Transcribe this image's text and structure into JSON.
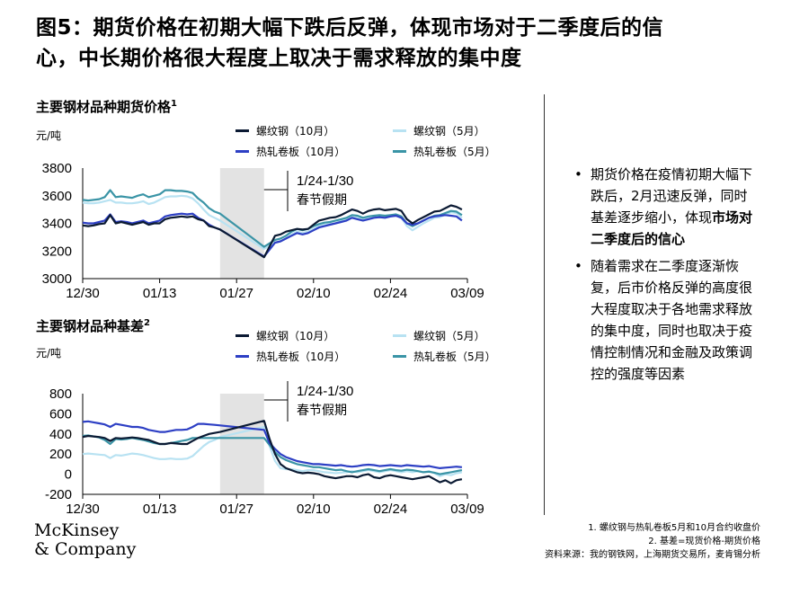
{
  "title_line1": "图5：期货价格在初期大幅下跌后反弹，体现市场对于二季度后的信",
  "title_line2": "心，中长期价格很大程度上取决于需求释放的集中度",
  "colors": {
    "rebar10": "#0b1a33",
    "rebar5": "#b8e2f2",
    "hrc10": "#2d3fc4",
    "hrc5": "#3a94a6",
    "holiday": "#e3e3e3"
  },
  "legend": {
    "rebar10": "螺纹钢（10月）",
    "rebar5": "螺纹钢（5月）",
    "hrc10": "热轧卷板（10月）",
    "hrc5": "热轧卷板（5月）"
  },
  "bullets": [
    {
      "pre": "期货价格在疫情初期大幅下跌后，2月迅速反弹，同时基差逐步缩小，体现",
      "bold": "市场对二季度后的信心",
      "post": ""
    },
    {
      "pre": "随着需求在二季度逐渐恢复，后市价格反弹的高度很大程度取决于各地需求释放的集中度，同时也取决于疫情控制情况和金融及政策调控的强度等因素",
      "bold": "",
      "post": ""
    }
  ],
  "footnotes": [
    "1. 螺纹钢与热轧卷板5月和10月合约收盘价",
    "2. 基差=现货价格-期货价格",
    "资料来源：我的钢铁网，上海期货交易所，麦肯锡分析"
  ],
  "logo": {
    "line1": "McKinsey",
    "line2": "& Company"
  },
  "chart_data": [
    {
      "type": "line",
      "title": "主要钢材品种期货价格",
      "title_sup": "1",
      "unit": "元/吨",
      "ylim": [
        3000,
        3800
      ],
      "yticks": [
        "3000",
        "3200",
        "3400",
        "3600",
        "3800"
      ],
      "xticks": [
        "12/30",
        "01/13",
        "01/27",
        "02/10",
        "02/24",
        "03/09"
      ],
      "x_days": [
        0,
        14,
        28,
        42,
        56,
        70
      ],
      "holiday": {
        "from": 25,
        "to": 33,
        "label1": "1/24-1/30",
        "label2": "春节假期"
      },
      "series": [
        {
          "key": "rebar10",
          "name": "螺纹钢（10月）",
          "x": [
            0,
            1,
            2,
            3,
            4,
            5,
            6,
            7,
            8,
            9,
            10,
            11,
            12,
            13,
            14,
            15,
            16,
            17,
            18,
            19,
            20,
            21,
            22,
            23,
            24,
            25,
            33,
            35,
            36,
            37,
            38,
            39,
            40,
            41,
            42,
            43,
            44,
            45,
            46,
            47,
            48,
            49,
            50,
            51,
            52,
            53,
            54,
            55,
            56,
            57,
            58,
            59,
            60,
            61,
            62,
            63,
            64,
            65,
            66,
            67,
            68,
            69
          ],
          "y": [
            3385,
            3380,
            3385,
            3395,
            3400,
            3460,
            3400,
            3410,
            3400,
            3390,
            3400,
            3410,
            3390,
            3400,
            3400,
            3430,
            3440,
            3445,
            3450,
            3445,
            3450,
            3430,
            3420,
            3380,
            3370,
            3355,
            3155,
            3310,
            3320,
            3340,
            3350,
            3360,
            3355,
            3360,
            3390,
            3420,
            3430,
            3440,
            3445,
            3460,
            3480,
            3500,
            3490,
            3470,
            3490,
            3500,
            3505,
            3495,
            3500,
            3505,
            3490,
            3430,
            3400,
            3425,
            3445,
            3465,
            3485,
            3490,
            3510,
            3530,
            3520,
            3500
          ]
        },
        {
          "key": "rebar5",
          "name": "螺纹钢（5月）",
          "x": [
            0,
            1,
            2,
            3,
            4,
            5,
            6,
            7,
            8,
            9,
            10,
            11,
            12,
            13,
            14,
            15,
            16,
            17,
            18,
            19,
            20,
            21,
            22,
            23,
            24,
            25,
            33,
            35,
            36,
            37,
            38,
            39,
            40,
            41,
            42,
            43,
            44,
            45,
            46,
            47,
            48,
            49,
            50,
            51,
            52,
            53,
            54,
            55,
            56,
            57,
            58,
            59,
            60,
            61,
            62,
            63,
            64,
            65,
            66,
            67,
            68,
            69
          ],
          "y": [
            3550,
            3545,
            3545,
            3550,
            3560,
            3570,
            3550,
            3550,
            3545,
            3545,
            3550,
            3560,
            3540,
            3550,
            3570,
            3590,
            3595,
            3595,
            3600,
            3595,
            3580,
            3545,
            3500,
            3460,
            3440,
            3420,
            3215,
            3260,
            3270,
            3290,
            3320,
            3340,
            3330,
            3340,
            3360,
            3380,
            3390,
            3395,
            3400,
            3420,
            3430,
            3445,
            3440,
            3430,
            3440,
            3445,
            3450,
            3445,
            3450,
            3455,
            3440,
            3380,
            3350,
            3375,
            3400,
            3420,
            3440,
            3445,
            3465,
            3480,
            3475,
            3440
          ]
        },
        {
          "key": "hrc10",
          "name": "热轧卷板（10月）",
          "x": [
            0,
            1,
            2,
            3,
            4,
            5,
            6,
            7,
            8,
            9,
            10,
            11,
            12,
            13,
            14,
            15,
            16,
            17,
            18,
            19,
            20,
            21,
            22,
            23,
            24,
            25,
            33,
            35,
            36,
            37,
            38,
            39,
            40,
            41,
            42,
            43,
            44,
            45,
            46,
            47,
            48,
            49,
            50,
            51,
            52,
            53,
            54,
            55,
            56,
            57,
            58,
            59,
            60,
            61,
            62,
            63,
            64,
            65,
            66,
            67,
            68,
            69
          ],
          "y": [
            3405,
            3400,
            3400,
            3410,
            3420,
            3465,
            3410,
            3415,
            3410,
            3400,
            3410,
            3420,
            3400,
            3410,
            3420,
            3450,
            3460,
            3465,
            3470,
            3465,
            3470,
            3440,
            3420,
            3390,
            3370,
            3355,
            3160,
            3260,
            3270,
            3290,
            3310,
            3330,
            3320,
            3330,
            3350,
            3370,
            3380,
            3390,
            3400,
            3410,
            3420,
            3440,
            3430,
            3420,
            3430,
            3440,
            3445,
            3440,
            3450,
            3455,
            3440,
            3400,
            3390,
            3400,
            3420,
            3440,
            3450,
            3455,
            3460,
            3455,
            3450,
            3420
          ]
        },
        {
          "key": "hrc5",
          "name": "热轧卷板（5月）",
          "x": [
            0,
            1,
            2,
            3,
            4,
            5,
            6,
            7,
            8,
            9,
            10,
            11,
            12,
            13,
            14,
            15,
            16,
            17,
            18,
            19,
            20,
            21,
            22,
            23,
            24,
            25,
            33,
            35,
            36,
            37,
            38,
            39,
            40,
            41,
            42,
            43,
            44,
            45,
            46,
            47,
            48,
            49,
            50,
            51,
            52,
            53,
            54,
            55,
            56,
            57,
            58,
            59,
            60,
            61,
            62,
            63,
            64,
            65,
            66,
            67,
            68,
            69
          ],
          "y": [
            3570,
            3565,
            3570,
            3575,
            3590,
            3640,
            3590,
            3595,
            3590,
            3585,
            3600,
            3610,
            3590,
            3600,
            3610,
            3640,
            3640,
            3635,
            3635,
            3630,
            3620,
            3580,
            3550,
            3510,
            3485,
            3470,
            3230,
            3280,
            3290,
            3310,
            3340,
            3360,
            3350,
            3360,
            3380,
            3395,
            3405,
            3410,
            3420,
            3430,
            3440,
            3460,
            3455,
            3440,
            3450,
            3455,
            3460,
            3455,
            3460,
            3465,
            3450,
            3400,
            3380,
            3400,
            3420,
            3440,
            3455,
            3460,
            3475,
            3490,
            3485,
            3460
          ]
        }
      ]
    },
    {
      "type": "line",
      "title": "主要钢材品种基差",
      "title_sup": "2",
      "unit": "元/吨",
      "ylim": [
        -200,
        800
      ],
      "yticks": [
        "-200",
        "0",
        "200",
        "400",
        "600",
        "800"
      ],
      "xticks": [
        "12/30",
        "01/13",
        "01/27",
        "02/10",
        "02/24",
        "03/09"
      ],
      "x_days": [
        0,
        14,
        28,
        42,
        56,
        70
      ],
      "holiday": {
        "from": 25,
        "to": 33,
        "label1": "1/24-1/30",
        "label2": "春节假期"
      },
      "series": [
        {
          "key": "rebar10",
          "name": "螺纹钢（10月）",
          "x": [
            0,
            1,
            2,
            3,
            4,
            5,
            6,
            7,
            8,
            9,
            10,
            11,
            12,
            13,
            14,
            15,
            16,
            17,
            18,
            19,
            20,
            21,
            22,
            23,
            24,
            25,
            33,
            34,
            35,
            36,
            37,
            38,
            39,
            40,
            41,
            42,
            43,
            44,
            45,
            46,
            47,
            48,
            49,
            50,
            51,
            52,
            53,
            54,
            55,
            56,
            57,
            58,
            59,
            60,
            61,
            62,
            63,
            64,
            65,
            66,
            67,
            68,
            69
          ],
          "y": [
            370,
            380,
            375,
            370,
            360,
            330,
            360,
            355,
            360,
            365,
            360,
            350,
            340,
            320,
            300,
            300,
            310,
            305,
            300,
            300,
            330,
            360,
            380,
            400,
            410,
            420,
            530,
            350,
            200,
            100,
            60,
            40,
            20,
            10,
            15,
            10,
            0,
            -20,
            -30,
            -40,
            -30,
            -20,
            -20,
            -30,
            -10,
            0,
            -30,
            -40,
            -20,
            -10,
            -20,
            -30,
            -40,
            -50,
            -40,
            -30,
            -20,
            -50,
            -80,
            -60,
            -90,
            -60,
            -50
          ]
        },
        {
          "key": "rebar5",
          "name": "螺纹钢（5月）",
          "x": [
            0,
            1,
            2,
            3,
            4,
            5,
            6,
            7,
            8,
            9,
            10,
            11,
            12,
            13,
            14,
            15,
            16,
            17,
            18,
            19,
            20,
            21,
            22,
            23,
            24,
            25,
            33,
            34,
            35,
            36,
            37,
            38,
            39,
            40,
            41,
            42,
            43,
            44,
            45,
            46,
            47,
            48,
            49,
            50,
            51,
            52,
            53,
            54,
            55,
            56,
            57,
            58,
            59,
            60,
            61,
            62,
            63,
            64,
            65,
            66,
            67,
            68,
            69
          ],
          "y": [
            200,
            205,
            200,
            195,
            190,
            160,
            190,
            185,
            195,
            205,
            200,
            190,
            175,
            160,
            150,
            150,
            155,
            150,
            150,
            155,
            180,
            230,
            280,
            320,
            340,
            370,
            470,
            280,
            130,
            60,
            50,
            50,
            40,
            30,
            40,
            40,
            30,
            20,
            15,
            10,
            15,
            20,
            30,
            20,
            30,
            40,
            30,
            20,
            30,
            40,
            30,
            20,
            30,
            20,
            30,
            20,
            30,
            10,
            -20,
            0,
            -10,
            10,
            20
          ]
        },
        {
          "key": "hrc10",
          "name": "热轧卷板（10月）",
          "x": [
            0,
            1,
            2,
            3,
            4,
            5,
            6,
            7,
            8,
            9,
            10,
            11,
            12,
            13,
            14,
            15,
            16,
            17,
            18,
            19,
            20,
            21,
            22,
            23,
            24,
            25,
            33,
            34,
            35,
            36,
            37,
            38,
            39,
            40,
            41,
            42,
            43,
            44,
            45,
            46,
            47,
            48,
            49,
            50,
            51,
            52,
            53,
            54,
            55,
            56,
            57,
            58,
            59,
            60,
            61,
            62,
            63,
            64,
            65,
            66,
            67,
            68,
            69
          ],
          "y": [
            520,
            525,
            515,
            505,
            495,
            470,
            500,
            490,
            480,
            470,
            470,
            460,
            440,
            430,
            420,
            420,
            430,
            440,
            440,
            445,
            470,
            500,
            500,
            495,
            490,
            485,
            440,
            310,
            250,
            200,
            170,
            150,
            130,
            120,
            110,
            100,
            100,
            95,
            90,
            85,
            90,
            80,
            75,
            80,
            90,
            95,
            90,
            80,
            85,
            90,
            85,
            80,
            90,
            85,
            80,
            75,
            80,
            70,
            60,
            65,
            70,
            75,
            70
          ]
        },
        {
          "key": "hrc5",
          "name": "热轧卷板（5月）",
          "x": [
            0,
            1,
            2,
            3,
            4,
            5,
            6,
            7,
            8,
            9,
            10,
            11,
            12,
            13,
            14,
            15,
            16,
            17,
            18,
            19,
            20,
            21,
            22,
            23,
            24,
            25,
            33,
            34,
            35,
            36,
            37,
            38,
            39,
            40,
            41,
            42,
            43,
            44,
            45,
            46,
            47,
            48,
            49,
            50,
            51,
            52,
            53,
            54,
            55,
            56,
            57,
            58,
            59,
            60,
            61,
            62,
            63,
            64,
            65,
            66,
            67,
            68,
            69
          ],
          "y": [
            380,
            385,
            375,
            365,
            340,
            300,
            350,
            345,
            350,
            360,
            350,
            340,
            325,
            310,
            300,
            300,
            310,
            320,
            330,
            340,
            360,
            360,
            360,
            360,
            360,
            360,
            360,
            290,
            220,
            170,
            140,
            120,
            100,
            90,
            80,
            70,
            70,
            60,
            50,
            40,
            45,
            30,
            20,
            30,
            40,
            50,
            40,
            30,
            40,
            50,
            40,
            35,
            45,
            40,
            30,
            20,
            25,
            15,
            0,
            10,
            20,
            30,
            40
          ]
        }
      ]
    }
  ]
}
